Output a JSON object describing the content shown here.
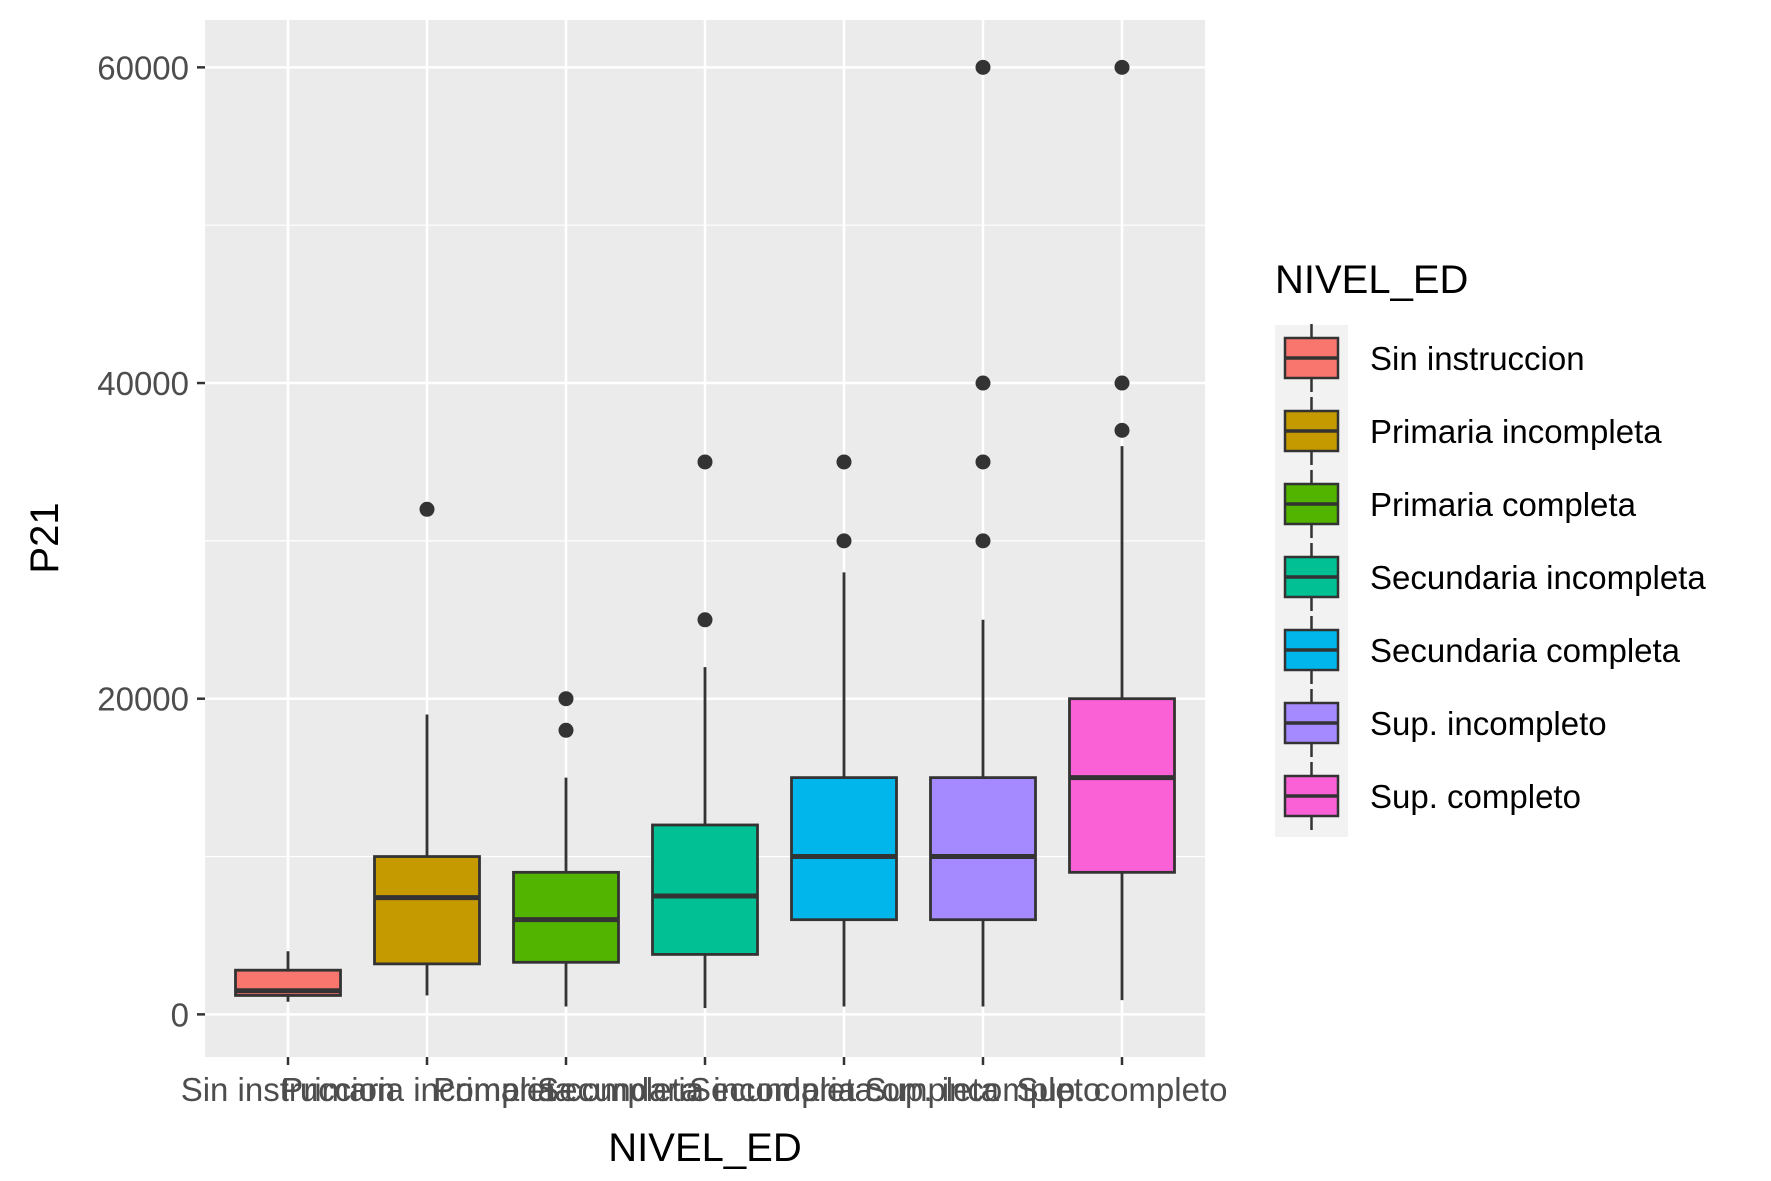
{
  "chart_data": {
    "type": "boxplot",
    "xlabel": "NIVEL_ED",
    "ylabel": "P21",
    "ylim": [
      -2700,
      63000
    ],
    "yticks": [
      0,
      20000,
      40000,
      60000
    ],
    "ytick_labels": [
      "0",
      "20000",
      "40000",
      "60000"
    ],
    "grid": true,
    "legend": {
      "title": "NIVEL_ED",
      "position": "right"
    },
    "categories": [
      "Sin instruccion",
      "Primaria incompleta",
      "Primaria completa",
      "Secundaria incompleta",
      "Secundaria completa",
      "Sup. incompleto",
      "Sup. completo"
    ],
    "colors": [
      "#F8766D",
      "#C49A00",
      "#53B400",
      "#00C094",
      "#00B6EB",
      "#A58AFF",
      "#FB61D7"
    ],
    "boxes": [
      {
        "whisker_low": 800,
        "q1": 1200,
        "median": 1500,
        "q3": 2800,
        "whisker_high": 4000,
        "outliers": []
      },
      {
        "whisker_low": 1200,
        "q1": 3200,
        "median": 7400,
        "q3": 10000,
        "whisker_high": 19000,
        "outliers": [
          32000
        ]
      },
      {
        "whisker_low": 500,
        "q1": 3300,
        "median": 6000,
        "q3": 9000,
        "whisker_high": 15000,
        "outliers": [
          18000,
          20000
        ]
      },
      {
        "whisker_low": 400,
        "q1": 3800,
        "median": 7500,
        "q3": 12000,
        "whisker_high": 22000,
        "outliers": [
          25000,
          35000
        ]
      },
      {
        "whisker_low": 500,
        "q1": 6000,
        "median": 10000,
        "q3": 15000,
        "whisker_high": 28000,
        "outliers": [
          30000,
          35000
        ]
      },
      {
        "whisker_low": 500,
        "q1": 6000,
        "median": 10000,
        "q3": 15000,
        "whisker_high": 25000,
        "outliers": [
          30000,
          35000,
          40000,
          60000
        ]
      },
      {
        "whisker_low": 900,
        "q1": 9000,
        "median": 15000,
        "q3": 20000,
        "whisker_high": 36000,
        "outliers": [
          37000,
          40000,
          60000
        ]
      }
    ]
  }
}
